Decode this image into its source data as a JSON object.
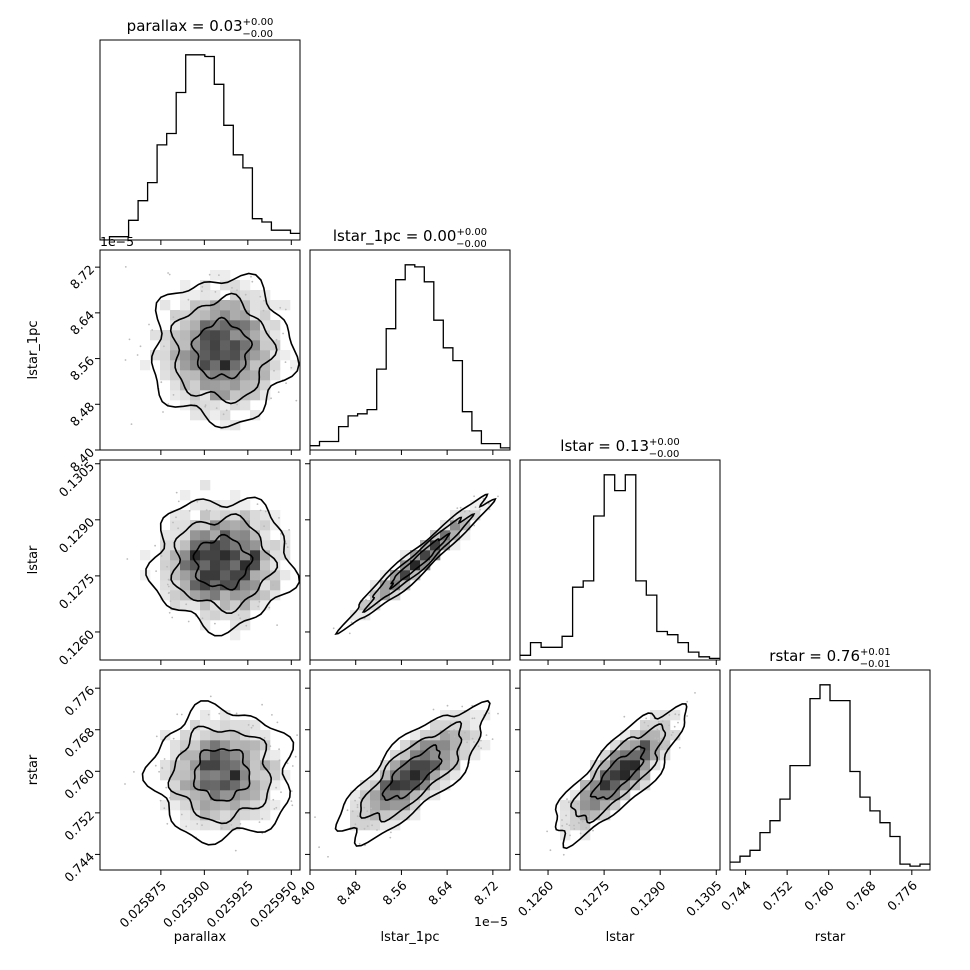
{
  "chart_data": {
    "type": "corner",
    "parameters": [
      "parallax",
      "lstar_1pc",
      "lstar",
      "rstar"
    ],
    "titles": [
      {
        "prefix": "parallax = ",
        "value": "0.03",
        "plus": "+0.00",
        "minus": "−0.00"
      },
      {
        "prefix": "lstar_1pc = ",
        "value": "0.00",
        "plus": "+0.00",
        "minus": "−0.00"
      },
      {
        "prefix": "lstar = ",
        "value": "0.13",
        "plus": "+0.00",
        "minus": "−0.00"
      },
      {
        "prefix": "rstar = ",
        "value": "0.76",
        "plus": "+0.01",
        "minus": "−0.01"
      }
    ],
    "ranges": [
      [
        0.02584,
        0.025955
      ],
      [
        8.4,
        8.75
      ],
      [
        0.12525,
        0.1306
      ],
      [
        0.741,
        0.7795
      ]
    ],
    "ticks": [
      {
        "values": [
          0.025875,
          0.0259,
          0.025925,
          0.02595
        ],
        "labels": [
          "0.025875",
          "0.025900",
          "0.025925",
          "0.025950"
        ]
      },
      {
        "values": [
          8.4,
          8.48,
          8.56,
          8.64,
          8.72
        ],
        "labels": [
          "8.40",
          "8.48",
          "8.56",
          "8.64",
          "8.72"
        ]
      },
      {
        "values": [
          0.126,
          0.1275,
          0.129,
          0.1305
        ],
        "labels": [
          "0.1260",
          "0.1275",
          "0.1290",
          "0.1305"
        ]
      },
      {
        "values": [
          0.744,
          0.752,
          0.76,
          0.768,
          0.776
        ],
        "labels": [
          "0.744",
          "0.752",
          "0.760",
          "0.768",
          "0.776"
        ]
      }
    ],
    "offset_text": "1e−5",
    "histograms": [
      {
        "edges_start": 0.02584,
        "edges_end": 0.025955,
        "counts": [
          0,
          2,
          2,
          12,
          24,
          35,
          58,
          65,
          90,
          113,
          113,
          112,
          95,
          70,
          52,
          44,
          13,
          11,
          6,
          6,
          4
        ]
      },
      {
        "edges_start": 8.4,
        "edges_end": 8.75,
        "counts": [
          2,
          4,
          4,
          11,
          16,
          17,
          19,
          38,
          57,
          80,
          87,
          86,
          79,
          61,
          48,
          42,
          18,
          9,
          3,
          3,
          1
        ]
      },
      {
        "edges_start": 0.12525,
        "edges_end": 0.1306,
        "counts": [
          3,
          11,
          8,
          8,
          15,
          46,
          50,
          91,
          117,
          107,
          117,
          50,
          41,
          18,
          16,
          11,
          5,
          2,
          1
        ]
      },
      {
        "edges_start": 0.741,
        "edges_end": 0.7795,
        "counts": [
          4,
          7,
          10,
          19,
          25,
          36,
          53,
          53,
          87,
          94,
          86,
          86,
          50,
          37,
          30,
          24,
          17,
          3,
          2,
          3
        ]
      }
    ],
    "pairs": [
      {
        "row": 1,
        "col": 0,
        "center": [
          0.02591,
          8.575
        ],
        "sigma": [
          1.75e-05,
          0.055
        ],
        "rho": 0.0
      },
      {
        "row": 2,
        "col": 0,
        "center": [
          0.02591,
          0.12785
        ],
        "sigma": [
          1.75e-05,
          0.00075
        ],
        "rho": 0.0
      },
      {
        "row": 2,
        "col": 1,
        "center": [
          8.59,
          0.1279
        ],
        "sigma": [
          0.055,
          0.00075
        ],
        "rho": 0.97
      },
      {
        "row": 3,
        "col": 0,
        "center": [
          0.02591,
          0.7595
        ],
        "sigma": [
          1.75e-05,
          0.0055
        ],
        "rho": 0.0
      },
      {
        "row": 3,
        "col": 1,
        "center": [
          8.58,
          0.7595
        ],
        "sigma": [
          0.055,
          0.0055
        ],
        "rho": 0.78
      },
      {
        "row": 3,
        "col": 2,
        "center": [
          0.1279,
          0.7595
        ],
        "sigma": [
          0.00075,
          0.0055
        ],
        "rho": 0.82
      }
    ],
    "colors": {
      "line": "#000000",
      "density": "#000000",
      "points": "#bbbbbb"
    }
  }
}
